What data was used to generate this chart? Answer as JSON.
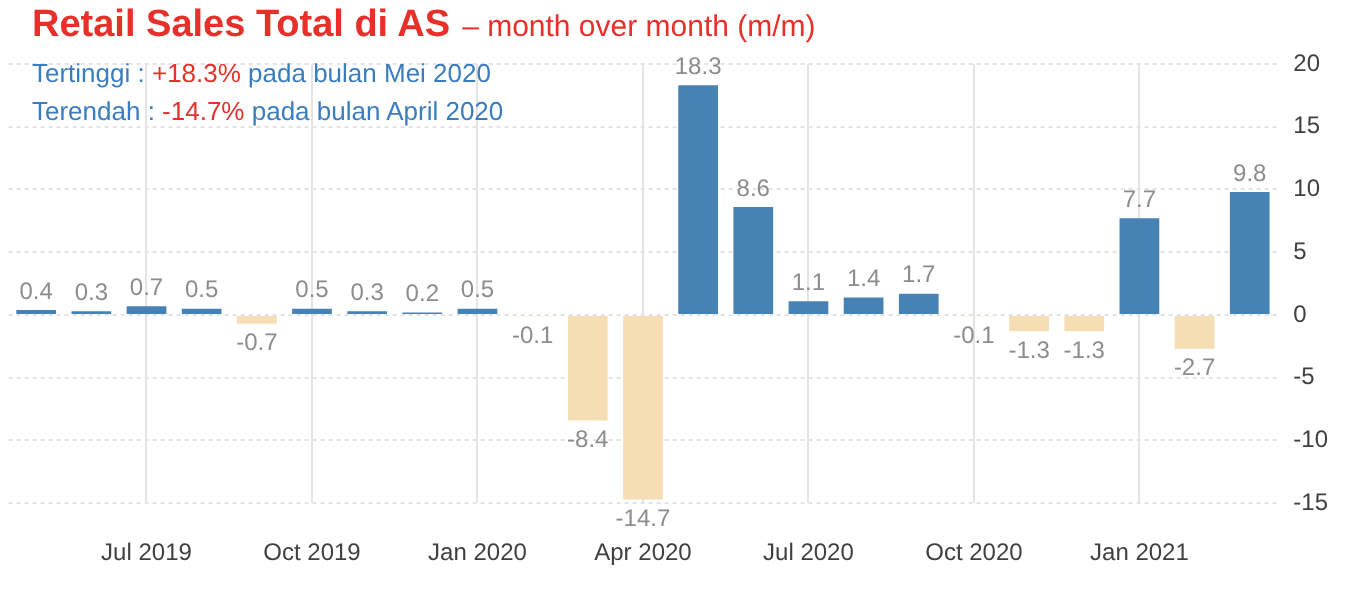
{
  "chart_data": {
    "type": "bar",
    "title": "Retail Sales Total di AS",
    "subtitle": "– month over month (m/m)",
    "annotations": [
      "Tertinggi  : +18.3% pada bulan Mei 2020",
      "Terendah : -14.7% pada bulan April 2020"
    ],
    "categories": [
      null,
      null,
      "Jul 2019",
      null,
      null,
      "Oct 2019",
      null,
      null,
      "Jan 2020",
      null,
      null,
      "Apr 2020",
      null,
      null,
      "Jul 2020",
      null,
      null,
      "Oct 2020",
      null,
      null,
      "Jan 2021",
      null,
      null
    ],
    "values": [
      0.4,
      0.3,
      0.7,
      0.5,
      -0.7,
      0.5,
      0.3,
      0.2,
      0.5,
      -0.1,
      -8.4,
      -14.7,
      18.3,
      8.6,
      1.1,
      1.4,
      1.7,
      -0.1,
      -1.3,
      -1.3,
      7.7,
      -2.7,
      9.8
    ],
    "colors": [
      "#4682b4",
      "#4682b4",
      "#4682b4",
      "#4682b4",
      "#f5deb3",
      "#4682b4",
      "#4682b4",
      "#4682b4",
      "#4682b4",
      "#f5deb3",
      "#f5deb3",
      "#f5deb3",
      "#4682b4",
      "#4682b4",
      "#4682b4",
      "#4682b4",
      "#4682b4",
      "#f5deb3",
      "#f5deb3",
      "#f5deb3",
      "#4682b4",
      "#f5deb3",
      "#4682b4"
    ],
    "ylim": [
      -15,
      20
    ],
    "yticks": [
      -15,
      -10,
      -5,
      0,
      5,
      10,
      15,
      20
    ],
    "grid": true,
    "data_labels": true,
    "legend": false
  }
}
